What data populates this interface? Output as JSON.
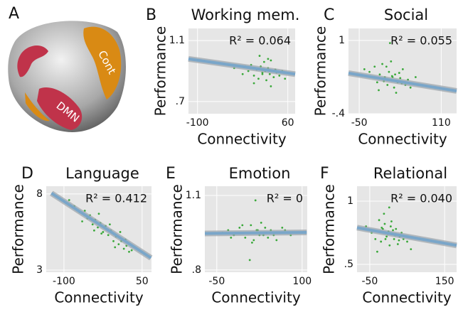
{
  "panel_a": {
    "label": "A",
    "regions": [
      "Cont",
      "DMN"
    ]
  },
  "chart_data": [
    {
      "type": "scatter",
      "panel_label": "B",
      "title": "Working mem.",
      "x_label": "Connectivity",
      "y_label": "Performance",
      "annotation": "R² = 0.064",
      "xlim": [
        -116,
        73
      ],
      "ylim": [
        0.62,
        1.18
      ],
      "xticks": [
        -100,
        60
      ],
      "yticks": [
        1.1,
        {
          "value": 0.7,
          "label": ".7"
        }
      ],
      "grid": true,
      "color": "#3aa83a",
      "fit_color": "#7aa6c9",
      "x": [
        -60,
        -35,
        -20,
        -10,
        -5,
        0,
        5,
        8,
        12,
        15,
        18,
        20,
        22,
        25,
        28,
        30,
        33,
        35,
        38,
        40,
        45,
        50,
        55,
        10,
        0,
        -15,
        30,
        25,
        20,
        15
      ],
      "y": [
        0.95,
        0.92,
        0.88,
        0.9,
        0.94,
        0.87,
        0.91,
        0.85,
        0.93,
        0.89,
        0.96,
        0.9,
        0.84,
        0.92,
        0.88,
        0.97,
        0.9,
        0.86,
        0.91,
        0.89,
        0.87,
        0.9,
        0.85,
        1.0,
        0.82,
        0.93,
        0.8,
        0.98,
        0.91,
        0.88
      ],
      "fit_x": [
        -116,
        73
      ],
      "fit_y": [
        0.98,
        0.88
      ]
    },
    {
      "type": "scatter",
      "panel_label": "C",
      "title": "Social",
      "x_label": "Connectivity",
      "y_label": "Performance",
      "annotation": "R² = 0.055",
      "xlim": [
        -71,
        140
      ],
      "ylim": [
        -0.4,
        1.23
      ],
      "xticks": [
        -50,
        110
      ],
      "yticks": [
        1,
        {
          "value": -0.4,
          "label": "-.4"
        }
      ],
      "grid": true,
      "color": "#3aa83a",
      "fit_color": "#7aa6c9",
      "x": [
        -40,
        -30,
        -25,
        -20,
        -15,
        -10,
        -5,
        0,
        5,
        8,
        10,
        12,
        15,
        18,
        20,
        25,
        30,
        35,
        40,
        45,
        50,
        60,
        -12,
        3,
        22,
        28,
        -2,
        14,
        33,
        10
      ],
      "y": [
        0.45,
        0.4,
        0.3,
        0.5,
        0.2,
        0.35,
        0.55,
        0.3,
        0.15,
        0.4,
        0.25,
        0.6,
        0.3,
        0.1,
        0.35,
        0.2,
        0.28,
        0.45,
        0.15,
        0.25,
        0.1,
        0.3,
        0.05,
        0.5,
        0.0,
        0.38,
        0.22,
        0.32,
        0.18,
        0.95
      ],
      "fit_x": [
        -71,
        140
      ],
      "fit_y": [
        0.375,
        0.035
      ]
    },
    {
      "type": "scatter",
      "panel_label": "D",
      "title": "Language",
      "x_label": "Connectivity",
      "y_label": "Performance",
      "annotation": "R² = 0.412",
      "xlim": [
        -134,
        68
      ],
      "ylim": [
        2.86,
        8.51
      ],
      "xticks": [
        -100,
        50
      ],
      "yticks": [
        8,
        3
      ],
      "grid": true,
      "color": "#3aa83a",
      "fit_color": "#7aa6c9",
      "x": [
        -90,
        -80,
        -70,
        -60,
        -55,
        -50,
        -45,
        -40,
        -35,
        -30,
        -25,
        -20,
        -15,
        -10,
        -5,
        0,
        5,
        10,
        15,
        20,
        25,
        30,
        -42,
        -28,
        -12,
        -2,
        8,
        18,
        -65,
        -33
      ],
      "y": [
        7.6,
        7.2,
        6.8,
        6.9,
        6.4,
        6.6,
        6.0,
        6.3,
        5.8,
        6.1,
        5.5,
        5.9,
        5.3,
        5.6,
        4.9,
        5.2,
        4.7,
        4.9,
        4.4,
        4.6,
        4.2,
        4.3,
        5.6,
        5.4,
        6.0,
        4.5,
        5.5,
        5.0,
        6.2,
        6.7
      ],
      "fit_x": [
        -124,
        67
      ],
      "fit_y": [
        8.05,
        3.8
      ]
    },
    {
      "type": "scatter",
      "panel_label": "E",
      "title": "Emotion",
      "x_label": "Connectivity",
      "y_label": "Performance",
      "annotation": "R² = 0",
      "xlim": [
        -71,
        109
      ],
      "ylim": [
        0.791,
        1.137
      ],
      "xticks": [
        -50,
        100
      ],
      "yticks": [
        1.1,
        {
          "value": 0.8,
          "label": ".8"
        }
      ],
      "grid": true,
      "color": "#3aa83a",
      "fit_color": "#7aa6c9",
      "x": [
        -40,
        -30,
        -20,
        -10,
        0,
        5,
        10,
        15,
        20,
        25,
        30,
        35,
        40,
        45,
        50,
        60,
        70,
        80,
        90,
        -25,
        -5,
        12,
        28,
        38,
        55,
        65,
        18,
        8,
        32,
        22
      ],
      "y": [
        0.95,
        0.96,
        0.94,
        0.97,
        0.93,
        0.95,
        0.98,
        0.92,
        0.96,
        0.94,
        0.95,
        0.97,
        0.93,
        0.96,
        0.94,
        0.95,
        0.96,
        0.94,
        0.95,
        0.93,
        0.98,
        0.91,
        0.99,
        0.95,
        0.92,
        0.97,
        1.08,
        0.84,
        0.94,
        0.96
      ],
      "fit_x": [
        -71,
        108
      ],
      "fit_y": [
        0.947,
        0.951
      ]
    },
    {
      "type": "scatter",
      "panel_label": "F",
      "title": "Relational",
      "x_label": "Connectivity",
      "y_label": "Performance",
      "annotation": "R² = 0.040",
      "xlim": [
        -84,
        182
      ],
      "ylim": [
        0.438,
        1.118
      ],
      "xticks": [
        -50,
        150
      ],
      "yticks": [
        1,
        {
          "value": 0.5,
          "label": ".5"
        }
      ],
      "grid": true,
      "color": "#3aa83a",
      "fit_color": "#7aa6c9",
      "x": [
        -60,
        -45,
        -35,
        -25,
        -20,
        -15,
        -10,
        -5,
        0,
        3,
        6,
        10,
        15,
        20,
        25,
        30,
        40,
        50,
        60,
        -30,
        -12,
        -2,
        8,
        18,
        35,
        -8,
        12,
        2,
        28,
        -18
      ],
      "y": [
        0.8,
        0.75,
        0.7,
        0.85,
        0.68,
        0.78,
        0.82,
        0.72,
        0.76,
        0.65,
        0.8,
        0.74,
        0.7,
        0.78,
        0.66,
        0.72,
        0.7,
        0.68,
        0.62,
        0.6,
        0.9,
        0.74,
        0.84,
        0.73,
        0.75,
        0.7,
        0.77,
        0.95,
        0.69,
        0.79
      ],
      "fit_x": [
        -84,
        182
      ],
      "fit_y": [
        0.79,
        0.65
      ]
    }
  ]
}
